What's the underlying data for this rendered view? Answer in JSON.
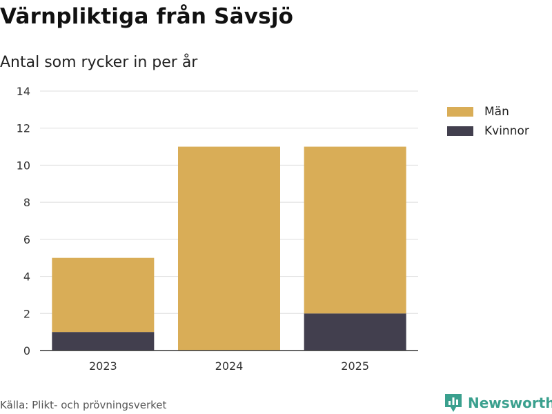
{
  "title": "Värnpliktiga från Sävsjö",
  "subtitle": "Antal som rycker in per år",
  "source": "Källa: Plikt- och prövningsverket",
  "brand": "Newsworthy",
  "colors": {
    "man": "#d9ad57",
    "kvinnor": "#423f4e",
    "grid": "#dddddd",
    "axis": "#333333",
    "brand": "#3aa08e"
  },
  "chart_data": {
    "type": "bar",
    "stacked": true,
    "categories": [
      "2023",
      "2024",
      "2025"
    ],
    "series": [
      {
        "name": "Kvinnor",
        "values": [
          1,
          0,
          2
        ]
      },
      {
        "name": "Män",
        "values": [
          4,
          11,
          9
        ]
      }
    ],
    "ylim": [
      0,
      14
    ],
    "yticks": [
      0,
      2,
      4,
      6,
      8,
      10,
      12,
      14
    ],
    "xlabel": "",
    "ylabel": "",
    "legend": [
      "Män",
      "Kvinnor"
    ],
    "legend_position": "top-right",
    "grid": true
  }
}
